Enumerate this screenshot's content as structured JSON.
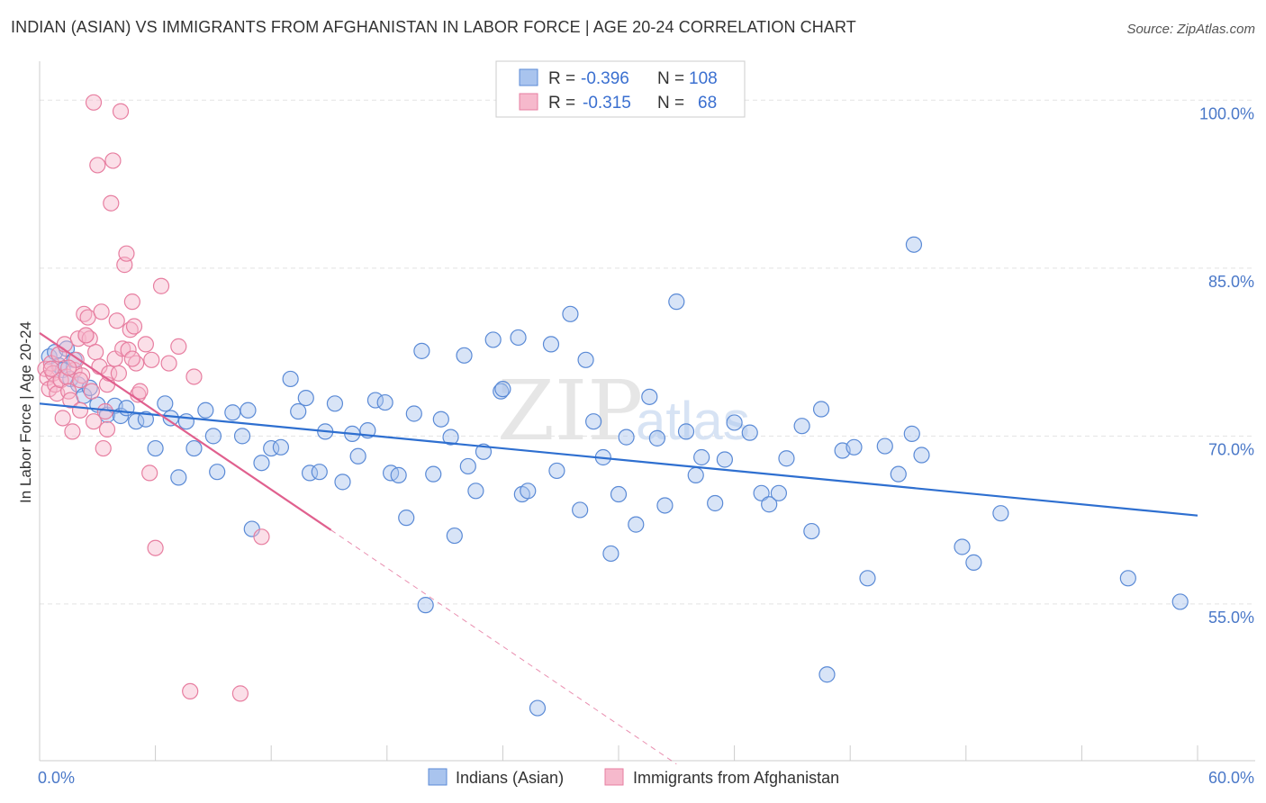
{
  "title": "INDIAN (ASIAN) VS IMMIGRANTS FROM AFGHANISTAN IN LABOR FORCE | AGE 20-24 CORRELATION CHART",
  "source": "Source: ZipAtlas.com",
  "watermark": {
    "zip": "ZIP",
    "atlas": "atlas"
  },
  "colors": {
    "blue_fill": "#a9c4ee",
    "blue_stroke": "#5a8ad6",
    "blue_line": "#2e6fd0",
    "pink_fill": "#f6b9cc",
    "pink_stroke": "#e77ea0",
    "pink_line": "#e0608e",
    "tick_text": "#4a78c8",
    "grid": "#e3e3e3"
  },
  "legend": {
    "rows": [
      {
        "r_label": "R = ",
        "r_value": "-0.396",
        "n_label": "N = ",
        "n_value": "108"
      },
      {
        "r_label": "R = ",
        "r_value": "-0.315",
        "n_label": "N = ",
        "n_value": "68"
      }
    ]
  },
  "bottom_legend": [
    "Indians (Asian)",
    "Immigrants from Afghanistan"
  ],
  "chart_data": {
    "type": "scatter",
    "xlabel": "",
    "ylabel": "In Labor Force | Age 20-24",
    "xlim": [
      0,
      60
    ],
    "ylim": [
      41,
      103
    ],
    "x_tick_labels": [
      "0.0%",
      "60.0%"
    ],
    "y_ticks": [
      55,
      70,
      85,
      100
    ],
    "y_tick_labels": [
      "55.0%",
      "70.0%",
      "85.0%",
      "100.0%"
    ],
    "grid": true,
    "legend_position": "top-center",
    "series": [
      {
        "name": "Indians (Asian)",
        "trend": {
          "x": [
            0,
            60
          ],
          "y": [
            72.9,
            62.9
          ]
        },
        "points": [
          [
            0.5,
            77.1
          ],
          [
            0.8,
            77.5
          ],
          [
            1.0,
            76.3
          ],
          [
            1.2,
            75.9
          ],
          [
            1.4,
            77.8
          ],
          [
            1.6,
            75.1
          ],
          [
            1.8,
            76.8
          ],
          [
            2.0,
            74.6
          ],
          [
            2.3,
            73.6
          ],
          [
            2.6,
            74.3
          ],
          [
            3.0,
            72.8
          ],
          [
            3.5,
            71.9
          ],
          [
            3.9,
            72.7
          ],
          [
            4.2,
            71.8
          ],
          [
            4.5,
            72.5
          ],
          [
            5.0,
            71.3
          ],
          [
            5.5,
            71.5
          ],
          [
            6.0,
            68.9
          ],
          [
            6.5,
            72.9
          ],
          [
            6.8,
            71.6
          ],
          [
            7.2,
            66.3
          ],
          [
            7.6,
            71.3
          ],
          [
            8.0,
            68.9
          ],
          [
            8.6,
            72.3
          ],
          [
            9.0,
            70.0
          ],
          [
            9.2,
            66.8
          ],
          [
            10.0,
            72.1
          ],
          [
            10.5,
            70.0
          ],
          [
            10.8,
            72.3
          ],
          [
            11.0,
            61.7
          ],
          [
            11.5,
            67.6
          ],
          [
            12.0,
            68.9
          ],
          [
            12.5,
            69.0
          ],
          [
            13.0,
            75.1
          ],
          [
            13.4,
            72.2
          ],
          [
            13.8,
            73.4
          ],
          [
            14.0,
            66.7
          ],
          [
            14.5,
            66.8
          ],
          [
            14.8,
            70.4
          ],
          [
            15.3,
            72.9
          ],
          [
            15.7,
            65.9
          ],
          [
            16.2,
            70.2
          ],
          [
            16.5,
            68.2
          ],
          [
            17.0,
            70.5
          ],
          [
            17.4,
            73.2
          ],
          [
            17.9,
            73.0
          ],
          [
            18.2,
            66.7
          ],
          [
            18.6,
            66.5
          ],
          [
            19.0,
            62.7
          ],
          [
            19.4,
            72.0
          ],
          [
            19.8,
            77.6
          ],
          [
            20.0,
            54.9
          ],
          [
            20.4,
            66.6
          ],
          [
            20.8,
            71.5
          ],
          [
            21.3,
            69.9
          ],
          [
            21.5,
            61.1
          ],
          [
            22.0,
            77.2
          ],
          [
            22.2,
            67.3
          ],
          [
            22.6,
            65.1
          ],
          [
            23.0,
            68.6
          ],
          [
            23.5,
            78.6
          ],
          [
            23.9,
            74.0
          ],
          [
            24.0,
            74.2
          ],
          [
            24.8,
            78.8
          ],
          [
            25.0,
            64.8
          ],
          [
            25.3,
            65.1
          ],
          [
            25.8,
            45.7
          ],
          [
            26.5,
            78.2
          ],
          [
            26.8,
            66.9
          ],
          [
            27.5,
            80.9
          ],
          [
            28.0,
            63.4
          ],
          [
            28.3,
            76.8
          ],
          [
            28.7,
            71.3
          ],
          [
            29.2,
            68.1
          ],
          [
            29.6,
            59.5
          ],
          [
            30.0,
            64.8
          ],
          [
            30.4,
            69.9
          ],
          [
            30.9,
            62.1
          ],
          [
            31.6,
            73.5
          ],
          [
            32.0,
            69.8
          ],
          [
            32.4,
            63.8
          ],
          [
            33.0,
            82.0
          ],
          [
            33.5,
            70.4
          ],
          [
            34.0,
            66.5
          ],
          [
            34.3,
            68.1
          ],
          [
            35.0,
            64.0
          ],
          [
            35.5,
            67.9
          ],
          [
            36.0,
            71.2
          ],
          [
            36.8,
            70.3
          ],
          [
            37.4,
            64.9
          ],
          [
            37.8,
            63.9
          ],
          [
            38.3,
            64.9
          ],
          [
            38.7,
            68.0
          ],
          [
            39.5,
            70.9
          ],
          [
            40.0,
            61.5
          ],
          [
            40.5,
            72.4
          ],
          [
            40.8,
            48.7
          ],
          [
            41.6,
            68.7
          ],
          [
            42.2,
            69.0
          ],
          [
            42.9,
            57.3
          ],
          [
            43.8,
            69.1
          ],
          [
            44.5,
            66.6
          ],
          [
            45.2,
            70.2
          ],
          [
            45.3,
            87.1
          ],
          [
            45.7,
            68.3
          ],
          [
            47.8,
            60.1
          ],
          [
            48.4,
            58.7
          ],
          [
            49.8,
            63.1
          ],
          [
            56.4,
            57.3
          ],
          [
            59.1,
            55.2
          ]
        ]
      },
      {
        "name": "Immigrants from Afghanistan",
        "trend": {
          "x": [
            0,
            15.1
          ],
          "y": [
            79.2,
            61.6
          ]
        },
        "trend_dashed": {
          "x": [
            15.1,
            33.0
          ],
          "y": [
            61.6,
            40.7
          ]
        },
        "points": [
          [
            0.3,
            76.0
          ],
          [
            0.4,
            75.2
          ],
          [
            0.5,
            74.2
          ],
          [
            0.6,
            76.5
          ],
          [
            0.7,
            75.6
          ],
          [
            0.8,
            74.6
          ],
          [
            0.9,
            73.8
          ],
          [
            1.0,
            77.3
          ],
          [
            1.1,
            75.0
          ],
          [
            1.2,
            71.6
          ],
          [
            1.3,
            78.2
          ],
          [
            1.4,
            75.3
          ],
          [
            1.5,
            74.0
          ],
          [
            1.6,
            73.2
          ],
          [
            1.7,
            70.4
          ],
          [
            1.8,
            75.9
          ],
          [
            1.9,
            76.8
          ],
          [
            2.0,
            78.7
          ],
          [
            2.1,
            72.3
          ],
          [
            2.2,
            75.4
          ],
          [
            2.3,
            80.9
          ],
          [
            2.4,
            79.0
          ],
          [
            2.5,
            80.6
          ],
          [
            2.6,
            78.7
          ],
          [
            2.7,
            74.0
          ],
          [
            2.8,
            71.3
          ],
          [
            2.9,
            77.5
          ],
          [
            3.0,
            94.2
          ],
          [
            3.1,
            76.2
          ],
          [
            3.2,
            81.1
          ],
          [
            3.3,
            68.9
          ],
          [
            3.4,
            72.2
          ],
          [
            3.5,
            74.6
          ],
          [
            3.6,
            75.6
          ],
          [
            3.7,
            90.8
          ],
          [
            3.8,
            94.6
          ],
          [
            3.9,
            76.9
          ],
          [
            4.0,
            80.3
          ],
          [
            4.1,
            75.6
          ],
          [
            4.2,
            99.0
          ],
          [
            4.3,
            77.8
          ],
          [
            4.4,
            85.3
          ],
          [
            4.5,
            86.3
          ],
          [
            4.6,
            77.7
          ],
          [
            4.7,
            79.5
          ],
          [
            4.8,
            82.0
          ],
          [
            4.9,
            79.8
          ],
          [
            5.0,
            76.5
          ],
          [
            5.1,
            73.7
          ],
          [
            5.2,
            74.0
          ],
          [
            5.5,
            78.2
          ],
          [
            5.7,
            66.7
          ],
          [
            5.8,
            76.8
          ],
          [
            6.0,
            60.0
          ],
          [
            6.3,
            83.4
          ],
          [
            6.7,
            76.5
          ],
          [
            7.2,
            78.0
          ],
          [
            7.8,
            47.2
          ],
          [
            8.0,
            75.3
          ],
          [
            10.4,
            47.0
          ],
          [
            11.5,
            61.0
          ],
          [
            2.1,
            75.0
          ],
          [
            1.5,
            76.1
          ],
          [
            2.4,
            79.0
          ],
          [
            0.6,
            76.0
          ],
          [
            2.8,
            99.8
          ],
          [
            3.5,
            70.6
          ],
          [
            4.8,
            76.9
          ]
        ]
      }
    ]
  }
}
